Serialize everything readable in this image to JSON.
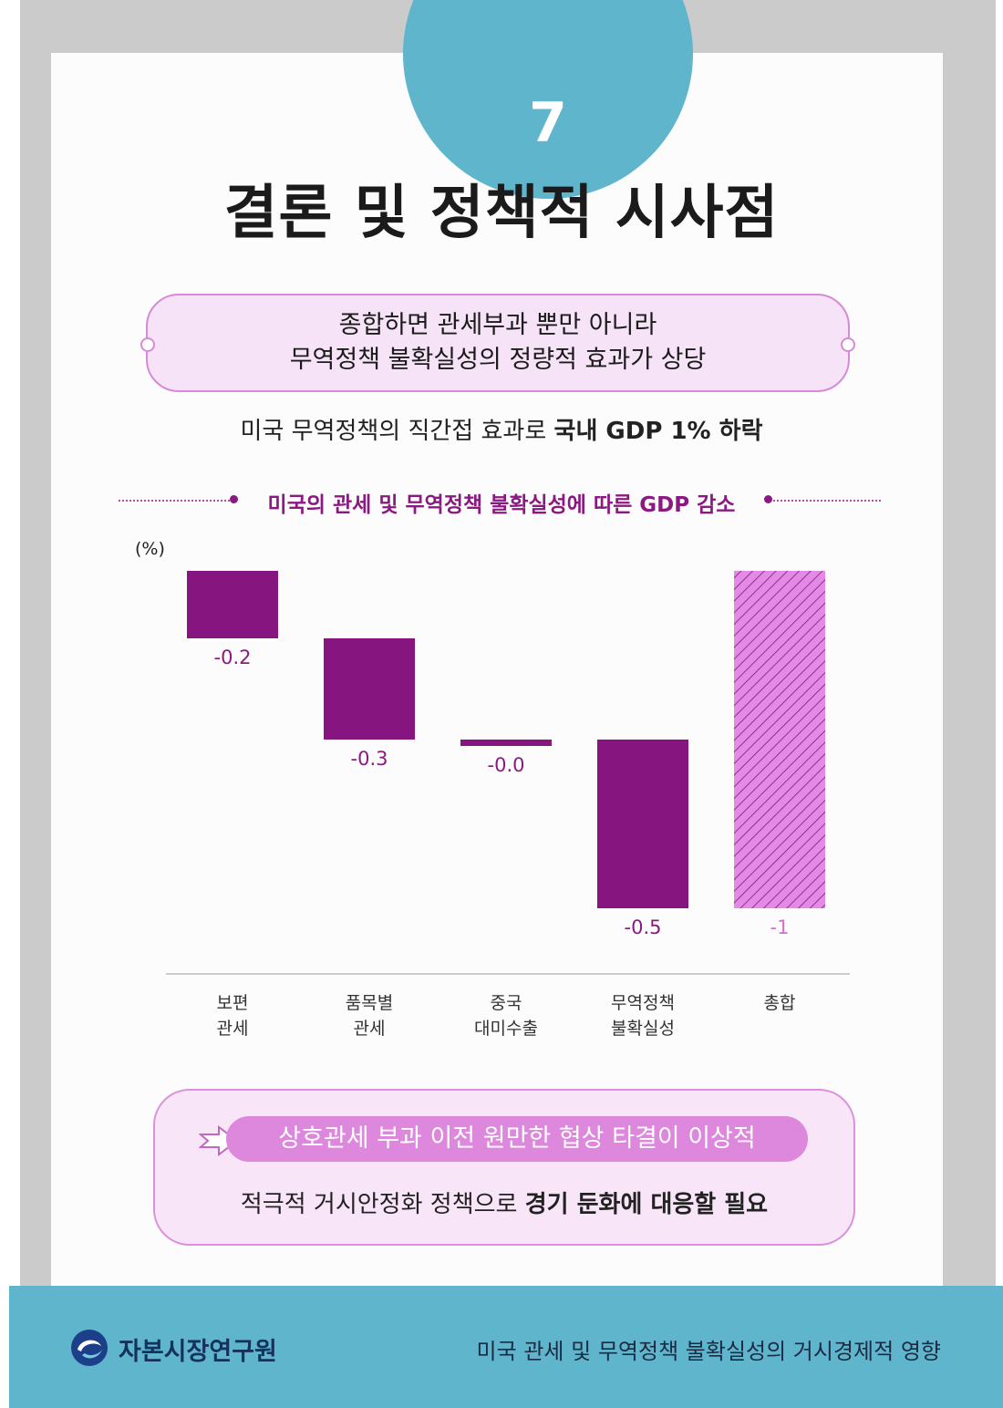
{
  "page_number": "7",
  "title": "결론 및 정책적 시사점",
  "summary": {
    "line1": "종합하면 관세부과 뿐만 아니라",
    "line2": "무역정책 불확실성의 정량적 효과가 상당"
  },
  "subline": {
    "normal": "미국 무역정책의 직간접 효과로 ",
    "bold": "국내 GDP 1% 하락"
  },
  "chart_title": "미국의 관세 및 무역정책 불확실성에 따른 GDP 감소",
  "colors": {
    "bar": "#86157f",
    "total_bar": "#e48ae6",
    "total_label": "#d070d0",
    "accent_blue": "#5fb5cc"
  },
  "chart_data": {
    "type": "bar",
    "ylabel": "(%)",
    "categories": [
      [
        "보편",
        "관세"
      ],
      [
        "품목별",
        "관세"
      ],
      [
        "중국",
        "대미수출"
      ],
      [
        "무역정책",
        "불확실성"
      ],
      [
        "총합"
      ]
    ],
    "values": [
      -0.2,
      -0.3,
      -0.0,
      -0.5,
      -1
    ],
    "value_labels": [
      "-0.2",
      "-0.3",
      "-0.0",
      "-0.5",
      "-1"
    ],
    "waterfall": true,
    "total_index": 4,
    "total_style": "hatched"
  },
  "conclusion": {
    "highlight": "상호관세 부과 이전 원만한 협상 타결이 이상적",
    "normal": "적극적 거시안정화 정책으로 ",
    "bold": "경기 둔화에 대응할 필요"
  },
  "footer": {
    "org": "자본시장연구원",
    "report_title": "미국 관세 및 무역정책 불확실성의 거시경제적 영향"
  }
}
